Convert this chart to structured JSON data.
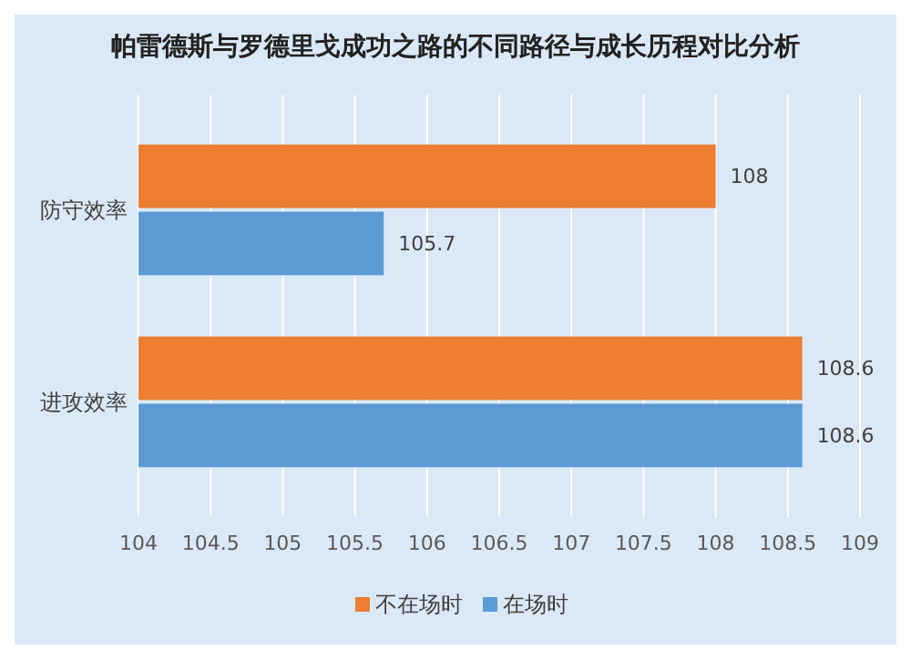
{
  "chart_data": {
    "type": "bar",
    "orientation": "horizontal",
    "title": "帕雷德斯与罗德里戈成功之路的不同路径与成长历程对比分析",
    "categories": [
      "防守效率",
      "进攻效率"
    ],
    "series": [
      {
        "name": "不在场时",
        "color": "#ed7d31",
        "values": [
          108,
          108.6
        ]
      },
      {
        "name": "在场时",
        "color": "#5b9bd5",
        "values": [
          105.7,
          108.6
        ]
      }
    ],
    "xlim": [
      104,
      109
    ],
    "xticks": [
      104,
      104.5,
      105,
      105.5,
      106,
      106.5,
      107,
      107.5,
      108,
      108.5,
      109
    ],
    "grid": "x",
    "legend": "bottom",
    "data_labels": true
  }
}
